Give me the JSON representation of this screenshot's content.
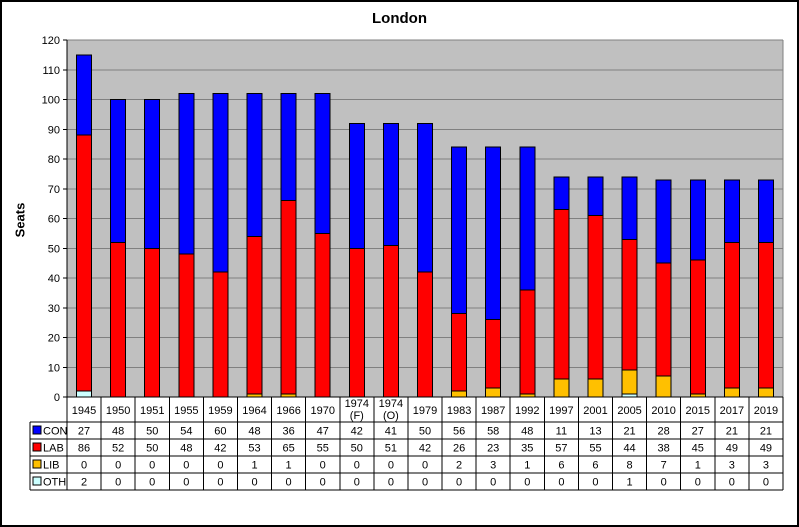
{
  "chart_data": {
    "type": "bar",
    "stacked": true,
    "title": "London",
    "ylabel": "Seats",
    "xlabel": "",
    "ylim": [
      0,
      120
    ],
    "yticks": [
      0,
      10,
      20,
      30,
      40,
      50,
      60,
      70,
      80,
      90,
      100,
      110,
      120
    ],
    "grid": true,
    "plot_bg_color": "#C0C0C0",
    "gridline_color": "#808080",
    "axis_color": "#000000",
    "categories": [
      "1945",
      "1950",
      "1951",
      "1955",
      "1959",
      "1964",
      "1966",
      "1970",
      "1974 (F)",
      "1974 (O)",
      "1979",
      "1983",
      "1987",
      "1992",
      "1997",
      "2001",
      "2005",
      "2010",
      "2015",
      "2017",
      "2019"
    ],
    "stack_order_bottom_to_top": [
      "OTH",
      "LIB",
      "LAB",
      "CON"
    ],
    "legend_position": "data-table-left",
    "series": [
      {
        "name": "CON",
        "color": "#0000FF",
        "values": [
          27,
          48,
          50,
          54,
          60,
          48,
          36,
          47,
          42,
          41,
          50,
          56,
          58,
          48,
          11,
          13,
          21,
          28,
          27,
          21,
          21
        ]
      },
      {
        "name": "LAB",
        "color": "#FF0000",
        "values": [
          86,
          52,
          50,
          48,
          42,
          53,
          65,
          55,
          50,
          51,
          42,
          26,
          23,
          35,
          57,
          55,
          44,
          38,
          45,
          49,
          49
        ]
      },
      {
        "name": "LIB",
        "color": "#FFC000",
        "values": [
          0,
          0,
          0,
          0,
          0,
          1,
          1,
          0,
          0,
          0,
          0,
          2,
          3,
          1,
          6,
          6,
          8,
          7,
          1,
          3,
          3
        ]
      },
      {
        "name": "OTH",
        "color": "#CCFFFF",
        "values": [
          2,
          0,
          0,
          0,
          0,
          0,
          0,
          0,
          0,
          0,
          0,
          0,
          0,
          0,
          0,
          0,
          1,
          0,
          0,
          0,
          0
        ]
      }
    ]
  }
}
